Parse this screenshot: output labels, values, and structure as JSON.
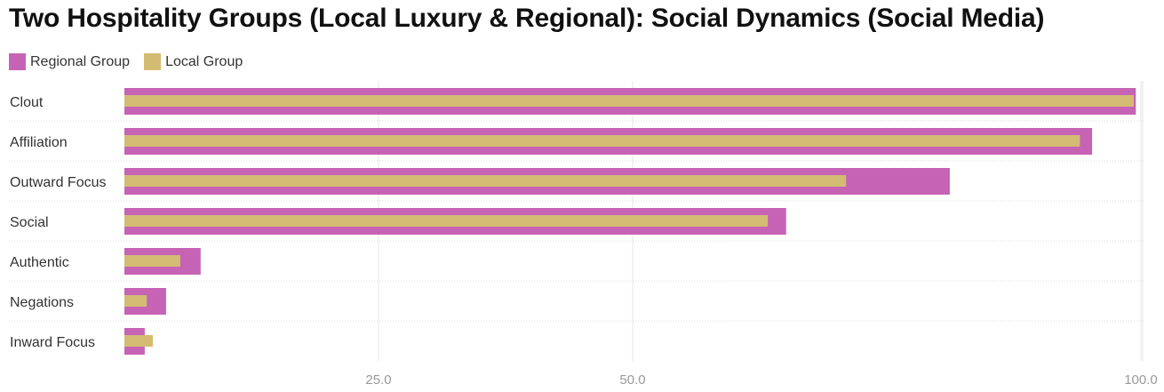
{
  "chart_data": {
    "type": "bar",
    "orientation": "horizontal",
    "title": "Two Hospitality Groups (Local Luxury & Regional): Social Dynamics (Social Media)",
    "categories": [
      "Clout",
      "Affiliation",
      "Outward Focus",
      "Social",
      "Authentic",
      "Negations",
      "Inward Focus"
    ],
    "series": [
      {
        "name": "Regional Group",
        "color": "#c663b5",
        "values": [
          99.5,
          95.2,
          81.2,
          65.1,
          7.5,
          4.1,
          2.0
        ]
      },
      {
        "name": "Local Group",
        "color": "#d4bb73",
        "values": [
          99.3,
          94.0,
          71.0,
          63.3,
          5.5,
          2.2,
          2.8
        ]
      }
    ],
    "xlim": [
      0,
      100
    ],
    "ticks": [
      {
        "value": 25,
        "label": "25.0"
      },
      {
        "value": 50,
        "label": "50.0"
      },
      {
        "value": 100,
        "label": "100.0"
      }
    ],
    "grid": true,
    "legend_position": "top-left"
  }
}
